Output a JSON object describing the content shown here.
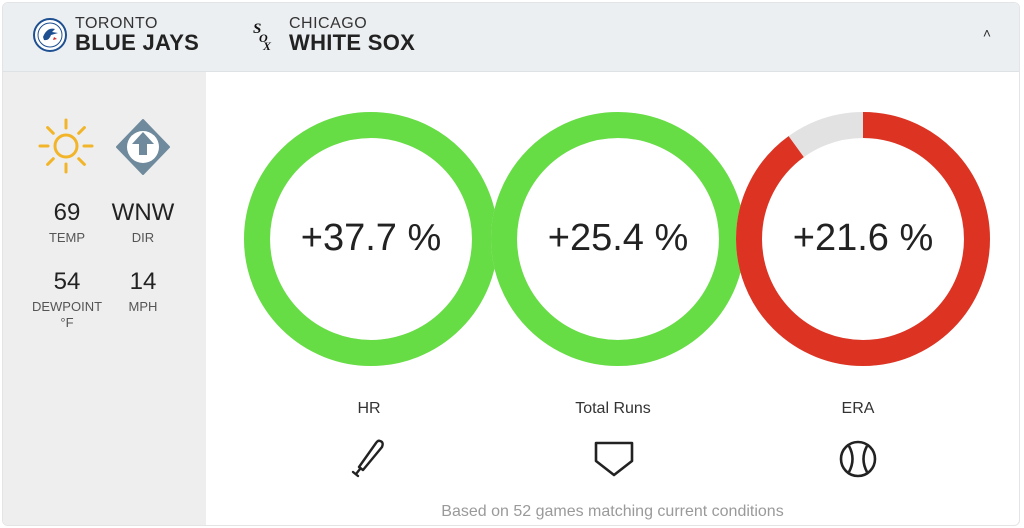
{
  "header": {
    "away_team": {
      "city": "TORONTO",
      "name": "BLUE JAYS",
      "logo_icon": "blue-jays-logo"
    },
    "home_team": {
      "city": "CHICAGO",
      "name": "WHITE SOX",
      "logo_icon": "white-sox-logo"
    },
    "collapse_icon": "˄"
  },
  "weather": {
    "condition_icon": "sun-icon",
    "wind_icon": "wind-direction-icon",
    "temp": {
      "value": "69",
      "label": "TEMP"
    },
    "dir": {
      "value": "WNW",
      "label": "DIR"
    },
    "dewpoint": {
      "value": "54",
      "label": "DEWPOINT",
      "unit": "°F"
    },
    "wind_speed": {
      "value": "14",
      "label": "MPH"
    }
  },
  "metrics": [
    {
      "value": "+37.7 %",
      "label": "HR",
      "icon": "baseball-bat-icon",
      "color": "#66dd44",
      "fill": 1.0
    },
    {
      "value": "+25.4 %",
      "label": "Total Runs",
      "icon": "home-plate-icon",
      "color": "#66dd44",
      "fill": 1.0
    },
    {
      "value": "+21.6 %",
      "label": "ERA",
      "icon": "baseball-icon",
      "color": "#dd3322",
      "fill": 0.9
    }
  ],
  "colors": {
    "ring_track": "#e2e2e2",
    "positive": "#66dd44",
    "negative": "#dd3322",
    "sun": "#f2b52a",
    "wind": "#6f8a9c"
  },
  "footer": {
    "note": "Based on 52 games matching current conditions"
  }
}
